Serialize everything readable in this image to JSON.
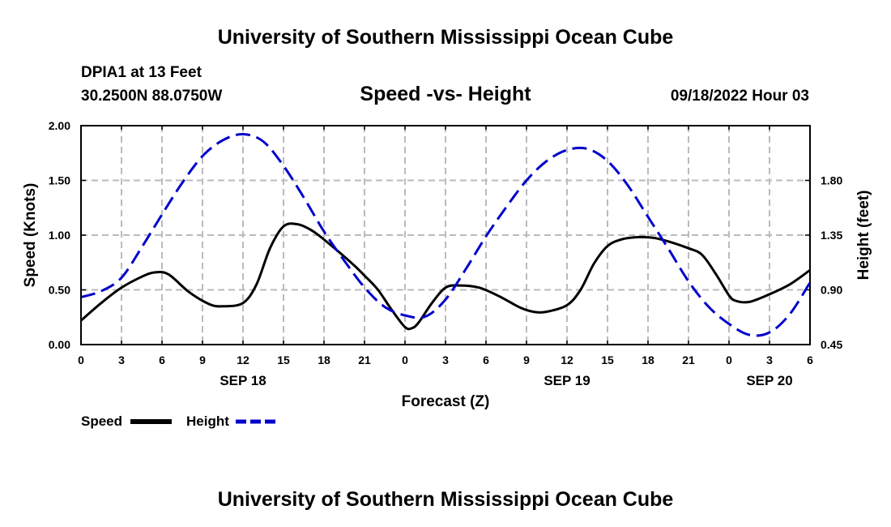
{
  "header": {
    "title": "University of Southern Mississippi Ocean Cube",
    "station": "DPIA1 at 13 Feet",
    "coords": "30.2500N  88.0750W",
    "chart_title": "Speed -vs- Height",
    "datetime": "09/18/2022 Hour 03"
  },
  "footer": {
    "title": "University of Southern Mississippi Ocean Cube"
  },
  "colors": {
    "speed": "#000000",
    "height": "#0000cc",
    "grid": "#bbbbbb"
  },
  "chart_data": {
    "type": "line",
    "title": "Speed -vs- Height",
    "xlabel": "Forecast (Z)",
    "ylabel": "Speed (Knots)",
    "y2label": "Height (feet)",
    "xlim": [
      0,
      54
    ],
    "ylim": [
      0,
      2
    ],
    "y2lim": [
      0.45,
      2.25
    ],
    "x_tick_values": [
      0,
      3,
      6,
      9,
      12,
      15,
      18,
      21,
      24,
      27,
      30,
      33,
      36,
      39,
      42,
      45,
      48,
      51,
      54
    ],
    "x_tick_labels": [
      "0",
      "3",
      "6",
      "9",
      "12",
      "15",
      "18",
      "21",
      "0",
      "3",
      "6",
      "9",
      "12",
      "15",
      "18",
      "21",
      "0",
      "3",
      "6"
    ],
    "y_ticks": [
      0,
      0.5,
      1,
      1.5,
      2
    ],
    "y_tick_labels": [
      "0.00",
      "0.50",
      "1.00",
      "1.50",
      "2.00"
    ],
    "y2_ticks": [
      0.45,
      0.9,
      1.35,
      1.8
    ],
    "y2_tick_labels": [
      "0.45",
      "0.90",
      "1.35",
      "1.80"
    ],
    "dates": [
      {
        "label": "SEP 18",
        "x": 12
      },
      {
        "label": "SEP 19",
        "x": 36
      },
      {
        "label": "SEP 20",
        "x": 51
      }
    ],
    "grid": true,
    "legend_position": "bottom-left",
    "series": [
      {
        "name": "Speed",
        "axis": "left",
        "style": "solid",
        "points": [
          [
            0,
            0.22
          ],
          [
            1.5,
            0.38
          ],
          [
            3,
            0.52
          ],
          [
            4.5,
            0.62
          ],
          [
            5.5,
            0.66
          ],
          [
            6.5,
            0.64
          ],
          [
            8,
            0.48
          ],
          [
            9.5,
            0.37
          ],
          [
            10.5,
            0.35
          ],
          [
            12,
            0.38
          ],
          [
            13,
            0.55
          ],
          [
            14,
            0.88
          ],
          [
            15,
            1.08
          ],
          [
            16,
            1.1
          ],
          [
            17,
            1.05
          ],
          [
            18,
            0.96
          ],
          [
            20,
            0.75
          ],
          [
            21,
            0.63
          ],
          [
            22,
            0.5
          ],
          [
            23,
            0.32
          ],
          [
            24,
            0.16
          ],
          [
            24.5,
            0.15
          ],
          [
            25,
            0.2
          ],
          [
            26,
            0.38
          ],
          [
            27,
            0.52
          ],
          [
            28,
            0.54
          ],
          [
            29.5,
            0.52
          ],
          [
            31,
            0.44
          ],
          [
            32.5,
            0.34
          ],
          [
            33.5,
            0.3
          ],
          [
            34.5,
            0.3
          ],
          [
            36,
            0.36
          ],
          [
            37,
            0.5
          ],
          [
            38,
            0.74
          ],
          [
            39,
            0.9
          ],
          [
            40,
            0.96
          ],
          [
            41,
            0.98
          ],
          [
            42,
            0.98
          ],
          [
            43,
            0.96
          ],
          [
            45,
            0.88
          ],
          [
            46,
            0.82
          ],
          [
            47,
            0.65
          ],
          [
            48,
            0.45
          ],
          [
            48.5,
            0.4
          ],
          [
            49.5,
            0.39
          ],
          [
            51,
            0.46
          ],
          [
            52.5,
            0.55
          ],
          [
            54,
            0.68
          ]
        ]
      },
      {
        "name": "Height",
        "axis": "right",
        "style": "dashed",
        "points": [
          [
            0,
            0.84
          ],
          [
            1.5,
            0.89
          ],
          [
            3,
            1.0
          ],
          [
            4.5,
            1.25
          ],
          [
            6,
            1.52
          ],
          [
            7.5,
            1.78
          ],
          [
            9,
            2.0
          ],
          [
            10.5,
            2.13
          ],
          [
            12,
            2.18
          ],
          [
            13.5,
            2.12
          ],
          [
            15,
            1.92
          ],
          [
            16.5,
            1.66
          ],
          [
            18,
            1.38
          ],
          [
            19.5,
            1.14
          ],
          [
            21,
            0.92
          ],
          [
            22.5,
            0.76
          ],
          [
            24,
            0.69
          ],
          [
            25.5,
            0.68
          ],
          [
            27,
            0.82
          ],
          [
            28.5,
            1.07
          ],
          [
            30,
            1.34
          ],
          [
            31.5,
            1.58
          ],
          [
            33,
            1.8
          ],
          [
            34.5,
            1.96
          ],
          [
            36,
            2.05
          ],
          [
            37.5,
            2.06
          ],
          [
            39,
            1.96
          ],
          [
            40.5,
            1.76
          ],
          [
            42,
            1.5
          ],
          [
            43.5,
            1.24
          ],
          [
            45,
            0.97
          ],
          [
            46.5,
            0.76
          ],
          [
            48,
            0.62
          ],
          [
            49.5,
            0.53
          ],
          [
            51,
            0.55
          ],
          [
            52.5,
            0.7
          ],
          [
            54,
            0.96
          ]
        ]
      }
    ]
  }
}
